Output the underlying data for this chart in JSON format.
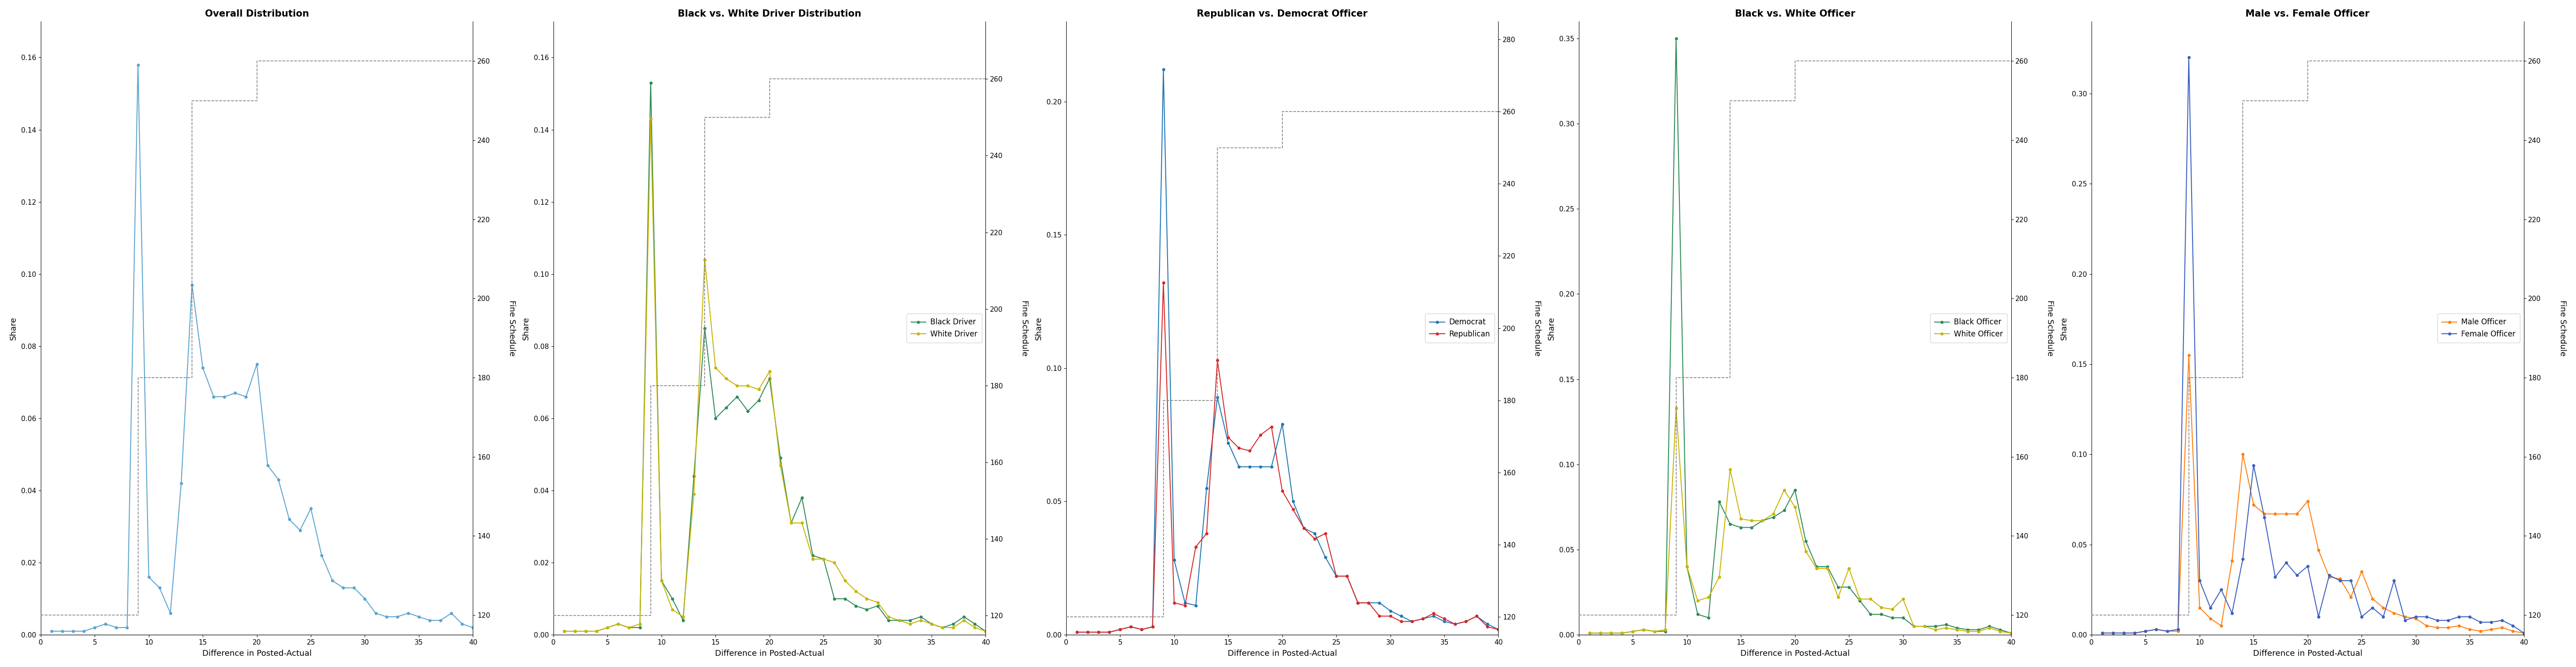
{
  "titles": [
    "Overall Distribution",
    "Black vs. White Driver Distribution",
    "Republican vs. Democrat Officer",
    "Black vs. White Officer",
    "Male vs. Female Officer"
  ],
  "xlabel": "Difference in Posted-Actual",
  "ylabel_left": "Share",
  "ylabel_right": "Fine Schedule",
  "xlim": [
    0,
    40
  ],
  "x": [
    1,
    2,
    3,
    4,
    5,
    6,
    7,
    8,
    9,
    10,
    11,
    12,
    13,
    14,
    15,
    16,
    17,
    18,
    19,
    20,
    21,
    22,
    23,
    24,
    25,
    26,
    27,
    28,
    29,
    30,
    31,
    32,
    33,
    34,
    35,
    36,
    37,
    38,
    39,
    40
  ],
  "fine_schedule_steps": [
    {
      "x": [
        0,
        9
      ],
      "y": [
        120,
        120
      ]
    },
    {
      "x": [
        9,
        9
      ],
      "y": [
        120,
        180
      ]
    },
    {
      "x": [
        9,
        14
      ],
      "y": [
        180,
        180
      ]
    },
    {
      "x": [
        14,
        14
      ],
      "y": [
        180,
        250
      ]
    },
    {
      "x": [
        14,
        20
      ],
      "y": [
        250,
        250
      ]
    },
    {
      "x": [
        20,
        20
      ],
      "y": [
        250,
        260
      ]
    },
    {
      "x": [
        20,
        40
      ],
      "y": [
        260,
        260
      ]
    }
  ],
  "panels": [
    {
      "title": "Overall Distribution",
      "series": [
        {
          "key": "overall",
          "label": null,
          "color": "#5ba4cf",
          "y": [
            0.001,
            0.001,
            0.001,
            0.001,
            0.002,
            0.003,
            0.002,
            0.002,
            0.158,
            0.016,
            0.013,
            0.006,
            0.042,
            0.097,
            0.074,
            0.066,
            0.066,
            0.067,
            0.066,
            0.075,
            0.047,
            0.043,
            0.032,
            0.029,
            0.035,
            0.022,
            0.015,
            0.013,
            0.013,
            0.01,
            0.006,
            0.005,
            0.005,
            0.006,
            0.005,
            0.004,
            0.004,
            0.006,
            0.003,
            0.002
          ]
        }
      ],
      "ylim": [
        0,
        0.17
      ],
      "yticks": [
        0.0,
        0.02,
        0.04,
        0.06,
        0.08,
        0.1,
        0.12,
        0.14,
        0.16
      ],
      "fine_ylim": [
        115,
        270
      ],
      "fine_yticks": [
        120,
        140,
        160,
        180,
        200,
        220,
        240,
        260
      ]
    },
    {
      "title": "Black vs. White Driver Distribution",
      "series": [
        {
          "key": "black_driver",
          "label": "Black Driver",
          "color": "#2e8b57",
          "y": [
            0.001,
            0.001,
            0.001,
            0.001,
            0.002,
            0.003,
            0.002,
            0.002,
            0.153,
            0.015,
            0.01,
            0.004,
            0.044,
            0.085,
            0.06,
            0.063,
            0.066,
            0.062,
            0.065,
            0.071,
            0.049,
            0.031,
            0.038,
            0.022,
            0.021,
            0.01,
            0.01,
            0.008,
            0.007,
            0.008,
            0.004,
            0.004,
            0.004,
            0.005,
            0.003,
            0.002,
            0.003,
            0.005,
            0.003,
            0.001
          ]
        },
        {
          "key": "white_driver",
          "label": "White Driver",
          "color": "#c8b400",
          "y": [
            0.001,
            0.001,
            0.001,
            0.001,
            0.002,
            0.003,
            0.002,
            0.003,
            0.143,
            0.015,
            0.007,
            0.005,
            0.039,
            0.104,
            0.074,
            0.071,
            0.069,
            0.069,
            0.068,
            0.073,
            0.047,
            0.031,
            0.031,
            0.021,
            0.021,
            0.02,
            0.015,
            0.012,
            0.01,
            0.009,
            0.005,
            0.004,
            0.003,
            0.004,
            0.003,
            0.002,
            0.002,
            0.004,
            0.002,
            0.001
          ]
        }
      ],
      "ylim": [
        0,
        0.17
      ],
      "yticks": [
        0.0,
        0.02,
        0.04,
        0.06,
        0.08,
        0.1,
        0.12,
        0.14,
        0.16
      ],
      "fine_ylim": [
        115,
        275
      ],
      "fine_yticks": [
        120,
        140,
        160,
        180,
        200,
        220,
        240,
        260
      ]
    },
    {
      "title": "Republican vs. Democrat Officer",
      "series": [
        {
          "key": "democrat",
          "label": "Democrat",
          "color": "#1f77b4",
          "y": [
            0.001,
            0.001,
            0.001,
            0.001,
            0.002,
            0.003,
            0.002,
            0.003,
            0.212,
            0.028,
            0.012,
            0.011,
            0.055,
            0.089,
            0.072,
            0.063,
            0.063,
            0.063,
            0.063,
            0.079,
            0.05,
            0.04,
            0.038,
            0.029,
            0.022,
            0.022,
            0.012,
            0.012,
            0.012,
            0.009,
            0.007,
            0.005,
            0.006,
            0.007,
            0.005,
            0.004,
            0.005,
            0.007,
            0.004,
            0.002
          ]
        },
        {
          "key": "republican",
          "label": "Republican",
          "color": "#d62728",
          "y": [
            0.001,
            0.001,
            0.001,
            0.001,
            0.002,
            0.003,
            0.002,
            0.003,
            0.132,
            0.012,
            0.011,
            0.033,
            0.038,
            0.103,
            0.074,
            0.07,
            0.069,
            0.075,
            0.078,
            0.054,
            0.047,
            0.04,
            0.036,
            0.038,
            0.022,
            0.022,
            0.012,
            0.012,
            0.007,
            0.007,
            0.005,
            0.005,
            0.006,
            0.008,
            0.006,
            0.004,
            0.005,
            0.007,
            0.003,
            0.002
          ]
        }
      ],
      "ylim": [
        0,
        0.23
      ],
      "yticks": [
        0.0,
        0.05,
        0.1,
        0.15,
        0.2
      ],
      "fine_ylim": [
        115,
        285
      ],
      "fine_yticks": [
        120,
        140,
        160,
        180,
        200,
        220,
        240,
        260,
        280
      ]
    },
    {
      "title": "Black vs. White Officer",
      "series": [
        {
          "key": "black_officer",
          "label": "Black Officer",
          "color": "#2e8b57",
          "y": [
            0.001,
            0.001,
            0.001,
            0.001,
            0.002,
            0.003,
            0.002,
            0.002,
            0.35,
            0.04,
            0.012,
            0.01,
            0.078,
            0.065,
            0.063,
            0.063,
            0.067,
            0.069,
            0.073,
            0.085,
            0.055,
            0.04,
            0.04,
            0.028,
            0.028,
            0.02,
            0.012,
            0.012,
            0.01,
            0.01,
            0.005,
            0.005,
            0.005,
            0.006,
            0.004,
            0.003,
            0.003,
            0.005,
            0.003,
            0.001
          ]
        },
        {
          "key": "white_officer",
          "label": "White Officer",
          "color": "#c8b400",
          "y": [
            0.001,
            0.001,
            0.001,
            0.001,
            0.002,
            0.003,
            0.002,
            0.003,
            0.133,
            0.04,
            0.02,
            0.022,
            0.034,
            0.097,
            0.068,
            0.067,
            0.067,
            0.071,
            0.085,
            0.075,
            0.049,
            0.039,
            0.039,
            0.022,
            0.039,
            0.021,
            0.021,
            0.016,
            0.015,
            0.021,
            0.005,
            0.005,
            0.003,
            0.004,
            0.003,
            0.002,
            0.002,
            0.004,
            0.002,
            0.001
          ]
        }
      ],
      "ylim": [
        0,
        0.36
      ],
      "yticks": [
        0.0,
        0.05,
        0.1,
        0.15,
        0.2,
        0.25,
        0.3,
        0.35
      ],
      "fine_ylim": [
        115,
        270
      ],
      "fine_yticks": [
        120,
        140,
        160,
        180,
        200,
        220,
        240,
        260
      ]
    },
    {
      "title": "Male vs. Female Officer",
      "series": [
        {
          "key": "male_officer",
          "label": "Male Officer",
          "color": "#ff7f0e",
          "y": [
            0.001,
            0.001,
            0.001,
            0.001,
            0.002,
            0.003,
            0.002,
            0.002,
            0.155,
            0.015,
            0.009,
            0.005,
            0.041,
            0.1,
            0.072,
            0.067,
            0.067,
            0.067,
            0.067,
            0.074,
            0.047,
            0.032,
            0.031,
            0.021,
            0.035,
            0.02,
            0.015,
            0.012,
            0.01,
            0.009,
            0.005,
            0.004,
            0.004,
            0.005,
            0.003,
            0.002,
            0.003,
            0.004,
            0.002,
            0.001
          ]
        },
        {
          "key": "female_officer",
          "label": "Female Officer",
          "color": "#3a5fbf",
          "y": [
            0.001,
            0.001,
            0.001,
            0.001,
            0.002,
            0.003,
            0.002,
            0.003,
            0.32,
            0.03,
            0.015,
            0.025,
            0.012,
            0.042,
            0.094,
            0.065,
            0.032,
            0.04,
            0.033,
            0.038,
            0.01,
            0.033,
            0.03,
            0.03,
            0.01,
            0.015,
            0.01,
            0.03,
            0.008,
            0.01,
            0.01,
            0.008,
            0.008,
            0.01,
            0.01,
            0.007,
            0.007,
            0.008,
            0.005,
            0.001
          ]
        }
      ],
      "ylim": [
        0,
        0.34
      ],
      "yticks": [
        0.0,
        0.05,
        0.1,
        0.15,
        0.2,
        0.25,
        0.3
      ],
      "fine_ylim": [
        115,
        270
      ],
      "fine_yticks": [
        120,
        140,
        160,
        180,
        200,
        220,
        240,
        260
      ]
    }
  ],
  "xticks": [
    0,
    5,
    10,
    15,
    20,
    25,
    30,
    35,
    40
  ]
}
